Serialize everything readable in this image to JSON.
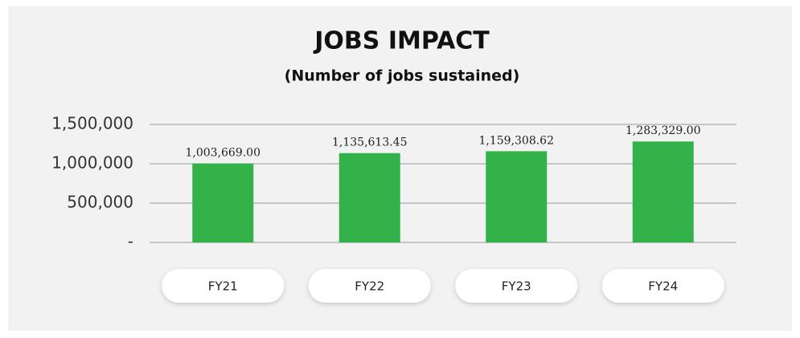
{
  "chart_data": {
    "type": "bar",
    "title": "JOBS IMPACT",
    "subtitle": "(Number of jobs sustained)",
    "categories": [
      "FY21",
      "FY22",
      "FY23",
      "FY24"
    ],
    "values": [
      1003669.0,
      1135613.45,
      1159308.62,
      1283329.0
    ],
    "value_labels": [
      "1,003,669.00",
      "1,135,613.45",
      "1,159,308.62",
      "1,283,329.00"
    ],
    "color": "#33b249",
    "ylim": [
      0,
      1500000
    ],
    "yticks": [
      {
        "value": 0,
        "label": "-"
      },
      {
        "value": 500000,
        "label": "500,000"
      },
      {
        "value": 1000000,
        "label": "1,000,000"
      },
      {
        "value": 1500000,
        "label": "1,500,000"
      }
    ],
    "grid": true
  }
}
